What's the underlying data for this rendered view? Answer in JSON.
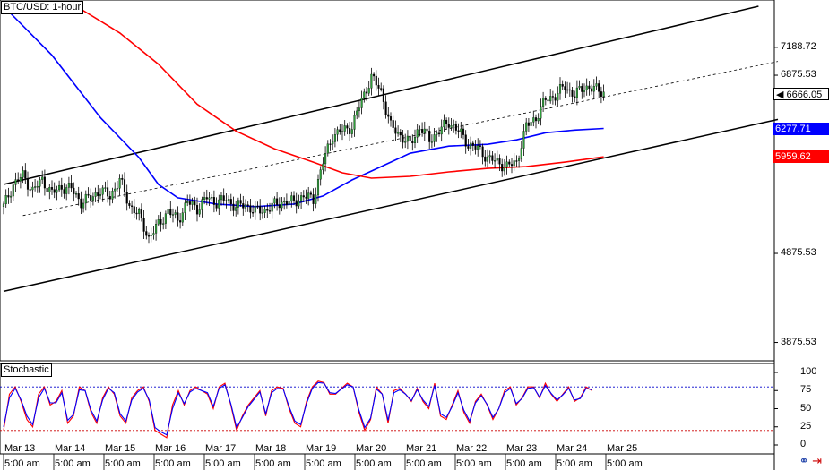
{
  "title": "BTC/USD: 1-hour",
  "chart_data": [
    {
      "type": "candlestick",
      "title": "BTC/USD: 1-hour",
      "x_ticks_dates": [
        "Mar 13",
        "Mar 14",
        "Mar 15",
        "Mar 16",
        "Mar 17",
        "Mar 18",
        "Mar 19",
        "Mar 20",
        "Mar 21",
        "Mar 22",
        "Mar 23",
        "Mar 24",
        "Mar 25"
      ],
      "x_ticks_times": [
        "5:00 am",
        "5:00 am",
        "5:00 am",
        "5:00 am",
        "5:00 am",
        "5:00 am",
        "5:00 am",
        "5:00 am",
        "5:00 am",
        "5:00 am",
        "5:00 am",
        "5:00 am",
        "5:00 am"
      ],
      "y_ticks": [
        "7188.72",
        "6875.53",
        "4875.53",
        "3875.53"
      ],
      "ylim": [
        3700,
        7700
      ],
      "price_labels": [
        {
          "text": "6666.05",
          "value": 6666.05,
          "color": "#000000"
        },
        {
          "text": "6277.71",
          "value": 6277.71,
          "color": "#0000ff"
        },
        {
          "text": "5959.62",
          "value": 5959.62,
          "color": "#ff0000"
        }
      ],
      "close_path": [
        [
          0,
          5400
        ],
        [
          4,
          5650
        ],
        [
          8,
          5750
        ],
        [
          12,
          5580
        ],
        [
          16,
          5700
        ],
        [
          20,
          5550
        ],
        [
          24,
          5620
        ],
        [
          28,
          5600
        ],
        [
          32,
          5450
        ],
        [
          36,
          5500
        ],
        [
          40,
          5580
        ],
        [
          44,
          5520
        ],
        [
          48,
          5700
        ],
        [
          52,
          5420
        ],
        [
          56,
          5300
        ],
        [
          60,
          5050
        ],
        [
          64,
          5200
        ],
        [
          68,
          5350
        ],
        [
          72,
          5250
        ],
        [
          76,
          5450
        ],
        [
          80,
          5380
        ],
        [
          84,
          5500
        ],
        [
          88,
          5450
        ],
        [
          92,
          5480
        ],
        [
          96,
          5400
        ],
        [
          100,
          5420
        ],
        [
          104,
          5350
        ],
        [
          108,
          5360
        ],
        [
          112,
          5420
        ],
        [
          116,
          5460
        ],
        [
          120,
          5450
        ],
        [
          124,
          5520
        ],
        [
          128,
          5480
        ],
        [
          132,
          5900
        ],
        [
          136,
          6200
        ],
        [
          140,
          6250
        ],
        [
          144,
          6300
        ],
        [
          148,
          6600
        ],
        [
          152,
          6850
        ],
        [
          156,
          6700
        ],
        [
          160,
          6300
        ],
        [
          164,
          6200
        ],
        [
          168,
          6100
        ],
        [
          172,
          6300
        ],
        [
          176,
          6150
        ],
        [
          180,
          6250
        ],
        [
          184,
          6350
        ],
        [
          188,
          6250
        ],
        [
          192,
          6100
        ],
        [
          196,
          6050
        ],
        [
          200,
          5950
        ],
        [
          204,
          5900
        ],
        [
          208,
          5850
        ],
        [
          212,
          5900
        ],
        [
          216,
          6300
        ],
        [
          220,
          6400
        ],
        [
          224,
          6600
        ],
        [
          228,
          6650
        ],
        [
          232,
          6750
        ],
        [
          236,
          6650
        ],
        [
          240,
          6750
        ],
        [
          244,
          6720
        ],
        [
          248,
          6690
        ]
      ],
      "moving_averages": [
        {
          "color": "#0000ff",
          "points": [
            [
              0,
              7650
            ],
            [
              20,
              7100
            ],
            [
              40,
              6400
            ],
            [
              56,
              5950
            ],
            [
              64,
              5650
            ],
            [
              72,
              5500
            ],
            [
              88,
              5430
            ],
            [
              104,
              5400
            ],
            [
              120,
              5430
            ],
            [
              132,
              5520
            ],
            [
              144,
              5700
            ],
            [
              156,
              5850
            ],
            [
              168,
              6000
            ],
            [
              184,
              6080
            ],
            [
              200,
              6100
            ],
            [
              212,
              6150
            ],
            [
              224,
              6230
            ],
            [
              236,
              6260
            ],
            [
              248,
              6277.71
            ]
          ]
        },
        {
          "color": "#ff0000",
          "points": [
            [
              30,
              7650
            ],
            [
              48,
              7350
            ],
            [
              64,
              7000
            ],
            [
              80,
              6550
            ],
            [
              96,
              6250
            ],
            [
              112,
              6050
            ],
            [
              128,
              5900
            ],
            [
              140,
              5780
            ],
            [
              152,
              5720
            ],
            [
              168,
              5740
            ],
            [
              184,
              5790
            ],
            [
              200,
              5830
            ],
            [
              216,
              5850
            ],
            [
              232,
              5900
            ],
            [
              248,
              5959.62
            ]
          ]
        }
      ],
      "channel_lines": [
        {
          "style": "solid",
          "from": [
            0,
            5650
          ],
          "to": [
            312,
            7650
          ]
        },
        {
          "style": "solid",
          "from": [
            0,
            4450
          ],
          "to": [
            320,
            6380
          ]
        },
        {
          "style": "dashed",
          "from": [
            8,
            5300
          ],
          "to": [
            320,
            7030
          ]
        }
      ]
    },
    {
      "type": "line",
      "title": "Stochastic",
      "y_ticks": [
        "100",
        "75",
        "50",
        "25",
        "0"
      ],
      "ylim": [
        0,
        100
      ],
      "levels": [
        80,
        20
      ],
      "series": [
        {
          "color": "#ff0000",
          "values": [
            20,
            70,
            80,
            60,
            35,
            25,
            70,
            80,
            55,
            60,
            75,
            30,
            40,
            80,
            75,
            45,
            30,
            65,
            80,
            70,
            40,
            30,
            65,
            75,
            80,
            60,
            20,
            15,
            10,
            55,
            75,
            55,
            75,
            80,
            75,
            70,
            50,
            80,
            85,
            55,
            20,
            40,
            55,
            65,
            75,
            40,
            75,
            80,
            78,
            50,
            30,
            25,
            60,
            80,
            88,
            86,
            70,
            70,
            78,
            85,
            80,
            45,
            20,
            35,
            80,
            70,
            30,
            75,
            78,
            70,
            60,
            78,
            60,
            50,
            85,
            40,
            35,
            55,
            75,
            45,
            30,
            60,
            70,
            55,
            35,
            50,
            75,
            80,
            55,
            65,
            80,
            80,
            65,
            85,
            70,
            60,
            70,
            80,
            60,
            65,
            80,
            75
          ]
        },
        {
          "color": "#0000ff",
          "values": [
            25,
            65,
            78,
            62,
            40,
            28,
            65,
            78,
            58,
            58,
            72,
            34,
            42,
            76,
            75,
            48,
            33,
            62,
            78,
            72,
            43,
            33,
            62,
            73,
            78,
            62,
            24,
            18,
            14,
            50,
            72,
            57,
            73,
            78,
            75,
            72,
            53,
            78,
            83,
            57,
            24,
            38,
            53,
            63,
            73,
            43,
            72,
            78,
            77,
            53,
            33,
            28,
            57,
            78,
            86,
            85,
            72,
            71,
            77,
            83,
            80,
            48,
            24,
            37,
            77,
            70,
            34,
            72,
            76,
            70,
            61,
            76,
            62,
            53,
            82,
            43,
            38,
            53,
            72,
            48,
            33,
            58,
            68,
            56,
            38,
            50,
            72,
            78,
            57,
            64,
            78,
            79,
            66,
            82,
            71,
            62,
            69,
            78,
            62,
            64,
            78,
            76
          ]
        }
      ]
    }
  ]
}
